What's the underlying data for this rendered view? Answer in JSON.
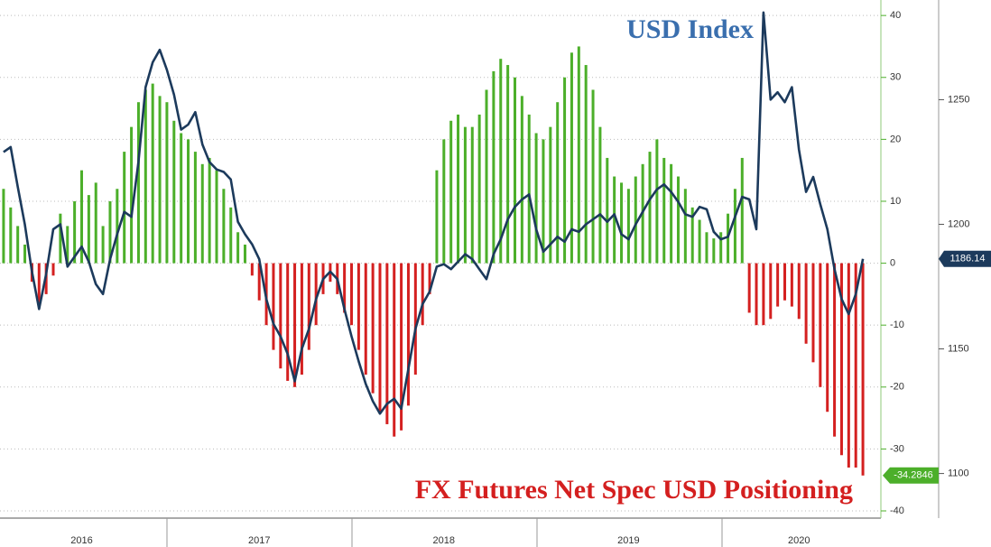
{
  "chart_data": {
    "type": "combo",
    "categories": [
      null,
      null,
      null,
      null,
      null,
      null,
      null,
      null,
      null,
      null,
      null,
      "2016",
      null,
      null,
      null,
      null,
      null,
      null,
      null,
      null,
      null,
      null,
      null,
      null,
      null,
      null,
      null,
      null,
      null,
      null,
      null,
      null,
      null,
      null,
      null,
      null,
      "2017",
      null,
      null,
      null,
      null,
      null,
      null,
      null,
      null,
      null,
      null,
      null,
      null,
      null,
      null,
      null,
      null,
      null,
      null,
      null,
      null,
      null,
      null,
      null,
      null,
      null,
      "2018",
      null,
      null,
      null,
      null,
      null,
      null,
      null,
      null,
      null,
      null,
      null,
      null,
      null,
      null,
      null,
      null,
      null,
      null,
      null,
      null,
      null,
      null,
      null,
      null,
      null,
      "2019",
      null,
      null,
      null,
      null,
      null,
      null,
      null,
      null,
      null,
      null,
      null,
      null,
      null,
      null,
      null,
      null,
      null,
      null,
      null,
      null,
      null,
      null,
      null,
      "2020",
      null,
      null,
      null,
      null,
      null,
      null,
      null,
      null,
      null
    ],
    "series": [
      {
        "name": "FX Futures Net Spec USD Positioning",
        "type": "bar",
        "color": "#4caf2a",
        "negative_color": "#d42020",
        "text_color": "#d41f1f",
        "values": [
          12,
          9,
          6,
          3,
          -3,
          -7,
          -5,
          -2,
          8,
          6,
          10,
          15,
          11,
          13,
          6,
          10,
          12,
          18,
          22,
          26,
          28,
          29,
          27,
          26,
          23,
          21,
          20,
          18,
          16,
          17,
          15,
          12,
          9,
          5,
          3,
          -2,
          -6,
          -10,
          -14,
          -17,
          -19,
          -20,
          -18,
          -14,
          -10,
          -5,
          -3,
          -5,
          -8,
          -10,
          -14,
          -18,
          -21,
          -24,
          -26,
          -28,
          -27,
          -23,
          -18,
          -10,
          -5,
          15,
          20,
          23,
          24,
          22,
          22,
          24,
          28,
          31,
          33,
          32,
          30,
          27,
          24,
          21,
          20,
          22,
          26,
          30,
          34,
          35,
          32,
          28,
          22,
          17,
          14,
          13,
          12,
          14,
          16,
          18,
          20,
          17,
          16,
          14,
          12,
          9,
          7,
          5,
          4,
          5,
          8,
          12,
          17,
          -8,
          -10,
          -10,
          -9,
          -7,
          -6,
          -7,
          -9,
          -13,
          -16,
          -20,
          -24,
          -28,
          -31,
          -33,
          -33,
          -34.2846
        ]
      },
      {
        "name": "USD Index",
        "type": "line",
        "axis": "y2",
        "color": "#1c3a5c",
        "text_color": "#3a6fae",
        "values": [
          1229,
          1231,
          1215,
          1200,
          1181,
          1166,
          1180,
          1198,
          1200,
          1183,
          1187,
          1191,
          1185,
          1176,
          1172,
          1186,
          1196,
          1205,
          1203,
          1225,
          1255,
          1265,
          1270,
          1262,
          1252,
          1238,
          1240,
          1245,
          1232,
          1225,
          1222,
          1221,
          1218,
          1201,
          1196,
          1192,
          1186,
          1170,
          1160,
          1155,
          1148,
          1137,
          1150,
          1158,
          1170,
          1178,
          1181,
          1178,
          1166,
          1155,
          1145,
          1136,
          1129,
          1124,
          1128,
          1130,
          1126,
          1142,
          1158,
          1168,
          1173,
          1183,
          1184,
          1182,
          1185,
          1188,
          1186,
          1182,
          1178,
          1188,
          1194,
          1202,
          1207,
          1210,
          1212,
          1198,
          1189,
          1192,
          1195,
          1193,
          1198,
          1197,
          1200,
          1202,
          1204,
          1201,
          1204,
          1196,
          1194,
          1200,
          1205,
          1210,
          1214,
          1216,
          1213,
          1209,
          1204,
          1203,
          1207,
          1206,
          1197,
          1194,
          1195,
          1203,
          1211,
          1210,
          1198,
          1285,
          1250,
          1253,
          1249,
          1255,
          1230,
          1213,
          1219,
          1208,
          1198,
          1182,
          1170,
          1164,
          1172,
          1186.14
        ]
      }
    ],
    "ylim": [
      -40,
      42.5
    ],
    "yticks": [
      -40,
      -30,
      -20,
      -10,
      0,
      10,
      20,
      30,
      40
    ],
    "y2lim": [
      1085,
      1290
    ],
    "y2ticks": [
      1100,
      1150,
      1200,
      1250
    ],
    "grid": true
  }
}
